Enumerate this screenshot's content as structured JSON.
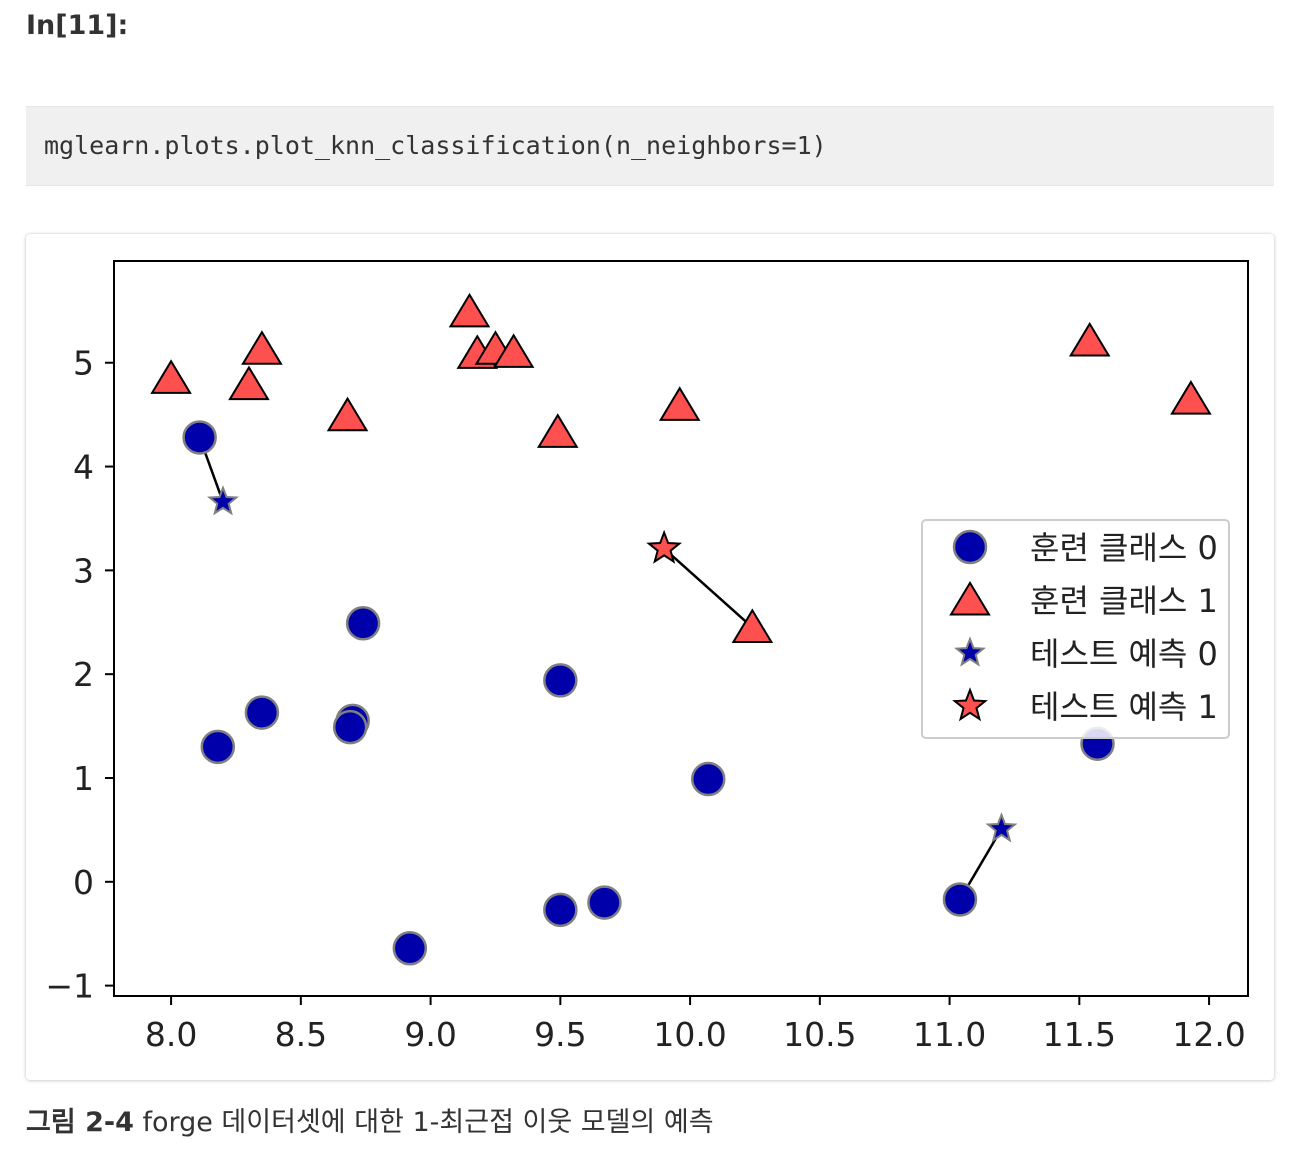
{
  "cell": {
    "prompt": "In[11]:",
    "code": "mglearn.plots.plot_knn_classification(n_neighbors=1)"
  },
  "figure": {
    "number": "그림 2-4",
    "text": " forge 데이터셋에 대한 1-최근접 이웃 모델의 예측"
  },
  "colors": {
    "class0": "#0000aa",
    "class1": "#ff5050",
    "frame": "#000000",
    "class0_edge": "#808080"
  },
  "chart_data": {
    "type": "scatter",
    "xlim": [
      7.78,
      12.15
    ],
    "ylim": [
      -1.1,
      5.98
    ],
    "xticks": [
      "8.0",
      "8.5",
      "9.0",
      "9.5",
      "10.0",
      "10.5",
      "11.0",
      "11.5",
      "12.0"
    ],
    "xtick_values": [
      8.0,
      8.5,
      9.0,
      9.5,
      10.0,
      10.5,
      11.0,
      11.5,
      12.0
    ],
    "yticks": [
      "−1",
      "0",
      "1",
      "2",
      "3",
      "4",
      "5"
    ],
    "ytick_values": [
      -1,
      0,
      1,
      2,
      3,
      4,
      5
    ],
    "grid": false,
    "legend_position": "center-right",
    "series": [
      {
        "name": "훈련 클래스 0",
        "marker": "circle",
        "points": [
          [
            8.11,
            4.28
          ],
          [
            8.18,
            1.3
          ],
          [
            8.35,
            1.63
          ],
          [
            8.74,
            2.49
          ],
          [
            8.7,
            1.55
          ],
          [
            8.69,
            1.49
          ],
          [
            9.5,
            1.94
          ],
          [
            10.07,
            0.99
          ],
          [
            11.57,
            1.33
          ],
          [
            9.5,
            -0.27
          ],
          [
            9.67,
            -0.2
          ],
          [
            8.92,
            -0.64
          ],
          [
            11.04,
            -0.17
          ]
        ]
      },
      {
        "name": "훈련 클래스 1",
        "marker": "triangle",
        "points": [
          [
            8.0,
            4.85
          ],
          [
            8.3,
            4.79
          ],
          [
            8.35,
            5.13
          ],
          [
            8.68,
            4.49
          ],
          [
            9.15,
            5.49
          ],
          [
            9.18,
            5.09
          ],
          [
            9.25,
            5.13
          ],
          [
            9.32,
            5.1
          ],
          [
            9.49,
            4.33
          ],
          [
            9.96,
            4.59
          ],
          [
            10.24,
            2.45
          ],
          [
            11.54,
            5.21
          ],
          [
            11.93,
            4.65
          ]
        ]
      },
      {
        "name": "테스트 예측 0",
        "marker": "star",
        "points": [
          [
            8.2,
            3.66
          ],
          [
            11.2,
            0.51
          ]
        ]
      },
      {
        "name": "테스트 예측 1",
        "marker": "star",
        "points": [
          [
            9.9,
            3.21
          ]
        ]
      }
    ],
    "neighbor_lines": [
      [
        [
          8.2,
          3.66
        ],
        [
          8.11,
          4.28
        ]
      ],
      [
        [
          11.2,
          0.51
        ],
        [
          11.04,
          -0.17
        ]
      ],
      [
        [
          9.9,
          3.21
        ],
        [
          10.24,
          2.45
        ]
      ]
    ]
  }
}
